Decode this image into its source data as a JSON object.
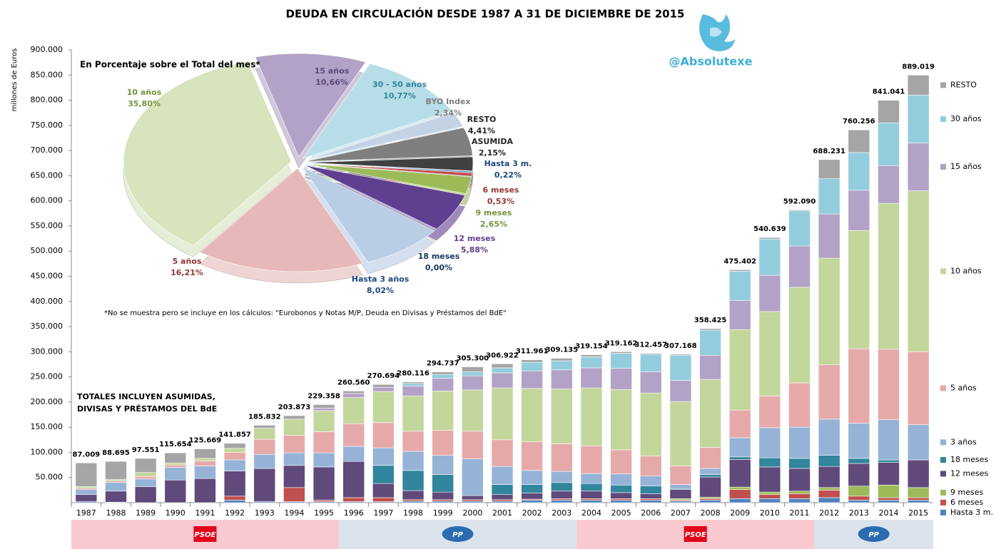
{
  "chart_data": [
    {
      "type": "bar",
      "stacked": true,
      "title": "DEUDA EN CIRCULACIÓN DESDE 1987 A 31 DE DICIEMBRE DE 2015",
      "y_label": "millones de Euros",
      "categories": [
        "1987",
        "1988",
        "1989",
        "1990",
        "1991",
        "1992",
        "1993",
        "1994",
        "1995",
        "1996",
        "1997",
        "1998",
        "1999",
        "2000",
        "2001",
        "2002",
        "2003",
        "2004",
        "2005",
        "2006",
        "2007",
        "2008",
        "2009",
        "2010",
        "2011",
        "2012",
        "2013",
        "2014",
        "2015"
      ],
      "series": [
        {
          "name": "Hasta 3 m.",
          "color": "#4f81bd",
          "values": [
            2000,
            1000,
            0,
            0,
            0,
            5000,
            2000,
            2000,
            2000,
            2000,
            2000,
            3000,
            3000,
            3000,
            3000,
            5000,
            5000,
            5000,
            5000,
            5000,
            3000,
            5000,
            8000,
            8000,
            8000,
            10000,
            5000,
            5000,
            5000
          ]
        },
        {
          "name": "6 meses",
          "color": "#c0504d",
          "values": [
            0,
            0,
            0,
            0,
            0,
            8000,
            0,
            28000,
            3000,
            8000,
            8000,
            3000,
            3000,
            3000,
            3000,
            2000,
            3000,
            3000,
            3000,
            3000,
            2000,
            3000,
            18000,
            8000,
            10000,
            15000,
            8000,
            5000,
            5000
          ]
        },
        {
          "name": "9 meses",
          "color": "#9bbb59",
          "values": [
            0,
            0,
            0,
            0,
            0,
            0,
            0,
            0,
            0,
            0,
            0,
            0,
            0,
            0,
            0,
            0,
            0,
            0,
            0,
            0,
            3000,
            3000,
            5000,
            5000,
            5000,
            5000,
            20000,
            25000,
            20000
          ]
        },
        {
          "name": "12 meses",
          "color": "#604a7b",
          "values": [
            14000,
            22000,
            32000,
            45000,
            48000,
            50000,
            66000,
            44000,
            66000,
            72000,
            28000,
            18000,
            15000,
            8000,
            10000,
            12000,
            15000,
            15000,
            12000,
            10000,
            18000,
            40000,
            55000,
            50000,
            45000,
            42000,
            45000,
            45000,
            55000
          ]
        },
        {
          "name": "18 meses",
          "color": "#31859c",
          "values": [
            0,
            0,
            0,
            0,
            0,
            0,
            0,
            0,
            0,
            0,
            36000,
            40000,
            35000,
            0,
            20000,
            17000,
            17000,
            15000,
            15000,
            15000,
            2000,
            5000,
            5000,
            18000,
            20000,
            22000,
            10000,
            5000,
            0
          ]
        },
        {
          "name": "3 años",
          "color": "#95b3d7",
          "values": [
            10000,
            17000,
            15000,
            25000,
            25000,
            22000,
            28000,
            25000,
            28000,
            30000,
            35000,
            38000,
            38000,
            73000,
            36000,
            28000,
            22000,
            20000,
            22000,
            20000,
            8000,
            12000,
            38000,
            60000,
            62000,
            72000,
            70000,
            80000,
            70000
          ]
        },
        {
          "name": "5 años",
          "color": "#e6a9a9",
          "values": [
            3000,
            3000,
            5000,
            5000,
            10000,
            15000,
            30000,
            35000,
            42000,
            45000,
            50000,
            40000,
            50000,
            55000,
            53000,
            57000,
            55000,
            55000,
            48000,
            40000,
            37000,
            42000,
            55000,
            63000,
            88000,
            108000,
            148000,
            140000,
            145000
          ]
        },
        {
          "name": "10 años",
          "color": "#c3d69b",
          "values": [
            3000,
            3000,
            8000,
            4000,
            5000,
            8000,
            22000,
            32000,
            42000,
            52000,
            62000,
            70000,
            78000,
            82000,
            103000,
            106000,
            109000,
            115000,
            120000,
            125000,
            128000,
            135000,
            160000,
            168000,
            190000,
            212000,
            235000,
            290000,
            320000
          ]
        },
        {
          "name": "15 años",
          "color": "#b3a2c7",
          "values": [
            0,
            0,
            0,
            0,
            0,
            0,
            0,
            0,
            5000,
            8000,
            8000,
            20000,
            25000,
            28000,
            30000,
            35000,
            38000,
            40000,
            42000,
            42000,
            42000,
            48000,
            58000,
            72000,
            82000,
            88000,
            80000,
            75000,
            95000
          ]
        },
        {
          "name": "30 años",
          "color": "#93cddd",
          "values": [
            0,
            0,
            0,
            0,
            0,
            0,
            0,
            0,
            0,
            0,
            0,
            5000,
            8000,
            8000,
            10000,
            17000,
            18000,
            22000,
            30000,
            35000,
            50000,
            50000,
            58000,
            72000,
            70000,
            70000,
            75000,
            85000,
            95000
          ]
        },
        {
          "name": "RESTO",
          "color": "#a5a5a5",
          "values": [
            47000,
            36000,
            28000,
            20000,
            19000,
            10000,
            6000,
            7000,
            7000,
            5000,
            6000,
            3000,
            5000,
            10000,
            8000,
            5000,
            5000,
            4000,
            3000,
            2000,
            2000,
            3000,
            3000,
            3000,
            2000,
            38000,
            45000,
            45000,
            40000
          ]
        }
      ],
      "totals": {
        "values": [
          87009,
          88695,
          97551,
          115654,
          125669,
          141857,
          185832,
          203873,
          229358,
          260560,
          270694,
          280116,
          294737,
          305300,
          306922,
          311961,
          309135,
          319154,
          319162,
          312457,
          307168,
          358425,
          475402,
          540639,
          592090,
          688231,
          760256,
          841041,
          889019
        ],
        "value_labels": [
          "87.009",
          "88.695",
          "97.551",
          "115.654",
          "125.669",
          "141.857",
          "185.832",
          "203.873",
          "229.358",
          "260.560",
          "270.694",
          "280.116",
          "294.737",
          "305.300",
          "306.922",
          "311.961",
          "309.135",
          "319.154",
          "319.162",
          "312.457",
          "307.168",
          "358.425",
          "475.402",
          "540.639",
          "592.090",
          "688.231",
          "760.256",
          "841.041",
          "889.019"
        ]
      },
      "ylim": [
        0,
        900000
      ],
      "yticks": [
        {
          "value": 50000,
          "label": "50.000"
        },
        {
          "value": 100000,
          "label": "100.000"
        },
        {
          "value": 150000,
          "label": "150.000"
        },
        {
          "value": 200000,
          "label": "200.000"
        },
        {
          "value": 250000,
          "label": "250.000"
        },
        {
          "value": 300000,
          "label": "300.000"
        },
        {
          "value": 350000,
          "label": "350.000"
        },
        {
          "value": 400000,
          "label": "400.000"
        },
        {
          "value": 450000,
          "label": "450.000"
        },
        {
          "value": 500000,
          "label": "500.000"
        },
        {
          "value": 550000,
          "label": "550.000"
        },
        {
          "value": 600000,
          "label": "600.000"
        },
        {
          "value": 650000,
          "label": "650.000"
        },
        {
          "value": 700000,
          "label": "700.000"
        },
        {
          "value": 750000,
          "label": "750.000"
        },
        {
          "value": 800000,
          "label": "800.000"
        },
        {
          "value": 850000,
          "label": "850.000"
        },
        {
          "value": 900000,
          "label": "900.000"
        }
      ],
      "grid": false,
      "legend": "right",
      "annotations": [
        "@Absolutexe",
        "TOTALES INCLUYEN ASUMIDAS,",
        "DIVISAS Y PRÉSTAMOS  DEL BdE"
      ],
      "governments": [
        "PSOE",
        "PP",
        "PSOE",
        "PP"
      ]
    },
    {
      "type": "pie",
      "title": "En Porcentaje sobre el Total del mes*",
      "note": "*No se muestra pero se incluye en los cálculos: \"Eurobonos y Notas  M/P, Deuda en Divisas y Préstamos del BdE\"",
      "categories": [
        "15 años",
        "30 - 50 años",
        "BYO Index",
        "RESTO",
        "ASUMIDA",
        "Hasta 3 m.",
        "6 meses",
        "9 meses",
        "12 meses",
        "18 meses",
        "Hasta 3 años",
        "5 años",
        "10 años"
      ],
      "values": [
        10.66,
        10.77,
        2.34,
        4.41,
        2.15,
        0.22,
        0.53,
        2.65,
        5.88,
        0.0,
        8.02,
        16.21,
        35.8
      ],
      "value_labels": [
        "10,66%",
        "10,77%",
        "2,34%",
        "4,41%",
        "2,15%",
        "0,22%",
        "0,53%",
        "2,65%",
        "5,88%",
        "0,00%",
        "8,02%",
        "16,21%",
        "35,80%"
      ],
      "colors": [
        "#b3a2c7",
        "#b7dde8",
        "#c4d3e3",
        "#7f7f7f",
        "#404040",
        "#4f81bd",
        "#c0504d",
        "#9bbb59",
        "#5f3f8f",
        "#215968",
        "#b9cde5",
        "#e6b9b8",
        "#d7e4bd"
      ],
      "label_colors": [
        "#5f497a",
        "#31859c",
        "#7f7f7f",
        "#262626",
        "#262626",
        "#1f497d",
        "#953735",
        "#77933c",
        "#5f3f8f",
        "#17375e",
        "#1f497d",
        "#953735",
        "#77933c"
      ]
    }
  ]
}
